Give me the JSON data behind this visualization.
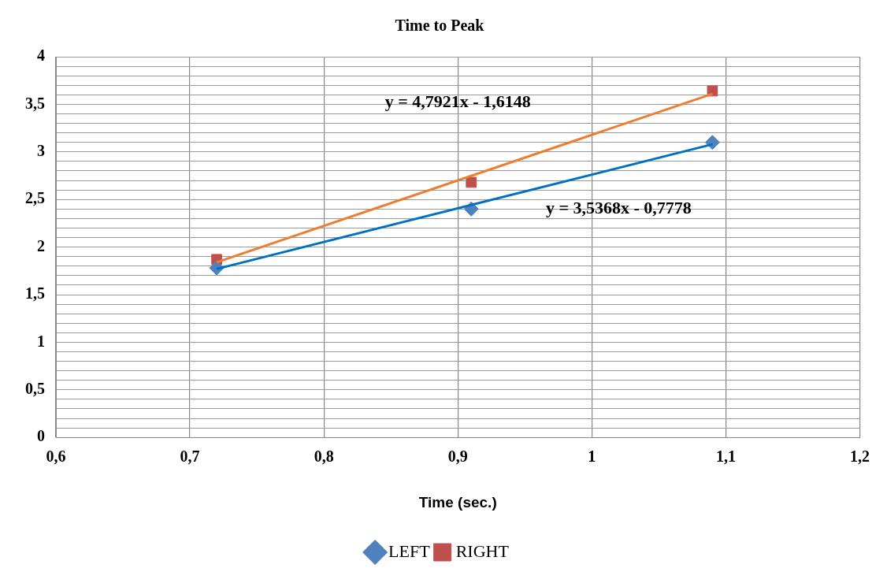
{
  "chart_data": {
    "type": "scatter",
    "title": "Time to Peak",
    "xlabel": "Time (sec.)",
    "xlim": [
      0.6,
      1.2
    ],
    "xticks": [
      {
        "value": 0.6,
        "label": "0,6"
      },
      {
        "value": 0.7,
        "label": "0,7"
      },
      {
        "value": 0.8,
        "label": "0,8"
      },
      {
        "value": 0.9,
        "label": "0,9"
      },
      1,
      {
        "value": 1.1,
        "label": "1,1"
      },
      {
        "value": 1.2,
        "label": "1,2"
      }
    ],
    "ylim": [
      0,
      4
    ],
    "yticks": [
      0,
      {
        "value": 0.1,
        "label": null
      },
      {
        "value": 0.2,
        "label": null
      },
      {
        "value": 0.3,
        "label": null
      },
      {
        "value": 0.4,
        "label": null
      },
      {
        "value": 0.5,
        "label": "0,5"
      },
      {
        "value": 0.6,
        "label": null
      },
      {
        "value": 0.7,
        "label": null
      },
      {
        "value": 0.8,
        "label": null
      },
      {
        "value": 0.9,
        "label": null
      },
      1,
      {
        "value": 1.1,
        "label": null
      },
      {
        "value": 1.2,
        "label": null
      },
      {
        "value": 1.3,
        "label": null
      },
      {
        "value": 1.4,
        "label": null
      },
      {
        "value": 1.5,
        "label": "1,5"
      },
      {
        "value": 1.6,
        "label": null
      },
      {
        "value": 1.7,
        "label": null
      },
      {
        "value": 1.8,
        "label": null
      },
      {
        "value": 1.9,
        "label": null
      },
      2,
      {
        "value": 2.1,
        "label": null
      },
      {
        "value": 2.2,
        "label": null
      },
      {
        "value": 2.3,
        "label": null
      },
      {
        "value": 2.4,
        "label": null
      },
      {
        "value": 2.5,
        "label": "2,5"
      },
      {
        "value": 2.6,
        "label": null
      },
      {
        "value": 2.7,
        "label": null
      },
      {
        "value": 2.8,
        "label": null
      },
      {
        "value": 2.9,
        "label": null
      },
      3,
      {
        "value": 3.1,
        "label": null
      },
      {
        "value": 3.2,
        "label": null
      },
      {
        "value": 3.3,
        "label": null
      },
      {
        "value": 3.4,
        "label": null
      },
      {
        "value": 3.5,
        "label": "3,5"
      },
      {
        "value": 3.6,
        "label": null
      },
      {
        "value": 3.7,
        "label": null
      },
      {
        "value": 3.8,
        "label": null
      },
      {
        "value": 3.9,
        "label": null
      },
      4
    ],
    "grid": true,
    "legend": "bottom",
    "series": [
      {
        "type": "line",
        "color": "#0070c0",
        "x": [
          0.72,
          1.09
        ],
        "values": [
          1.77,
          3.08
        ],
        "marker": "none"
      },
      {
        "type": "line",
        "color": "#ed7d31",
        "x": [
          0.72,
          1.09
        ],
        "values": [
          1.84,
          3.61
        ],
        "marker": "none"
      },
      {
        "name": "LEFT",
        "color": "#4f81bd",
        "x": [
          0.72,
          0.91,
          1.09
        ],
        "values": [
          1.78,
          2.4,
          3.1
        ],
        "marker": "diamond"
      },
      {
        "name": "RIGHT",
        "color": "#c0504d",
        "x": [
          0.72,
          0.91,
          1.09
        ],
        "values": [
          1.87,
          2.68,
          3.64
        ],
        "marker": "square"
      }
    ],
    "annotations": [
      "y = 4,7921x - 1,6148",
      "y = 3,5368x - 0,7778"
    ]
  }
}
